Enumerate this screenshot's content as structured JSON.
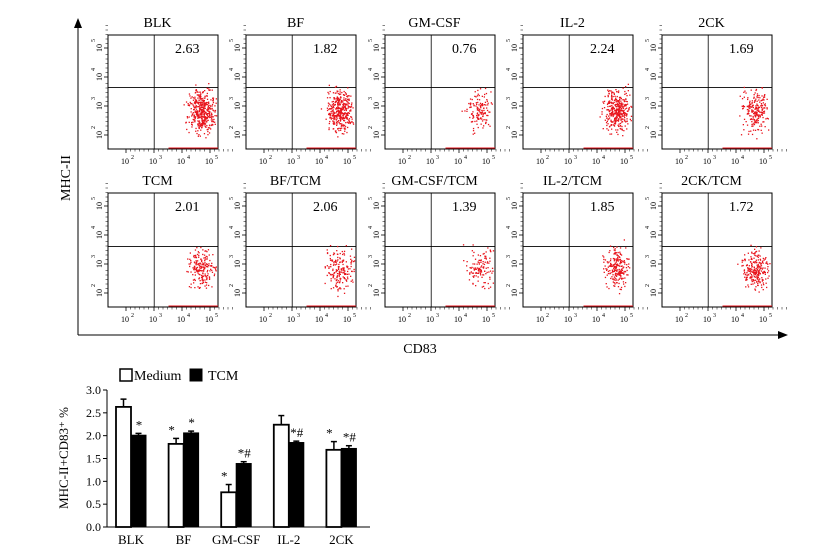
{
  "figure_top": {
    "y_axis_label": "MHC-II",
    "x_axis_label": "CD83",
    "tick_labels": [
      "10",
      "10",
      "10",
      "10"
    ],
    "tick_exponents": [
      "2",
      "3",
      "4",
      "5"
    ],
    "panels": [
      {
        "title": "BLK",
        "value": "2.63",
        "density": 420
      },
      {
        "title": "BF",
        "value": "1.82",
        "density": 380
      },
      {
        "title": "GM-CSF",
        "value": "0.76",
        "density": 140
      },
      {
        "title": "IL-2",
        "value": "2.24",
        "density": 360
      },
      {
        "title": "2CK",
        "value": "1.69",
        "density": 220
      },
      {
        "title": "TCM",
        "value": "2.01",
        "density": 200
      },
      {
        "title": "BF/TCM",
        "value": "2.06",
        "density": 180
      },
      {
        "title": "GM-CSF/TCM",
        "value": "1.39",
        "density": 120
      },
      {
        "title": "IL-2/TCM",
        "value": "1.85",
        "density": 220
      },
      {
        "title": "2CK/TCM",
        "value": "1.72",
        "density": 240
      }
    ],
    "colors": {
      "dots": "#e8141c"
    }
  },
  "chart_data": {
    "type": "bar",
    "title": "",
    "xlabel": "",
    "ylabel": "MHC-II+CD83⁺ %",
    "categories": [
      "BLK",
      "BF",
      "GM-CSF",
      "IL-2",
      "2CK"
    ],
    "ylim": [
      0,
      3.0
    ],
    "yticks": [
      "0.0",
      "0.5",
      "1.0",
      "1.5",
      "2.0",
      "2.5",
      "3.0"
    ],
    "series": [
      {
        "name": "Medium",
        "color": "#ffffff",
        "values": [
          2.63,
          1.82,
          0.76,
          2.24,
          1.69
        ],
        "errors": [
          0.17,
          0.12,
          0.17,
          0.2,
          0.18
        ],
        "marks": [
          "",
          "*",
          "*",
          "",
          "*"
        ]
      },
      {
        "name": "TCM",
        "color": "#000000",
        "values": [
          2.01,
          2.06,
          1.39,
          1.85,
          1.72
        ],
        "errors": [
          0.04,
          0.04,
          0.04,
          0.03,
          0.06
        ],
        "marks": [
          "*",
          "*",
          "*#",
          "*#",
          "*#"
        ]
      }
    ],
    "legend": "top-left"
  }
}
